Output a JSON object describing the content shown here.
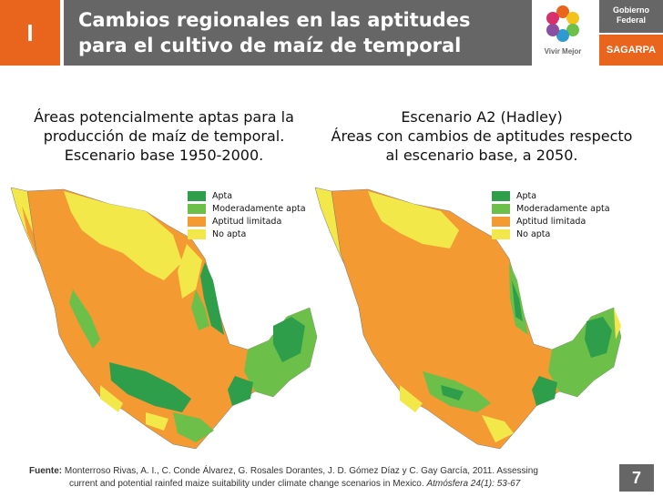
{
  "header": {
    "badge": "I",
    "title_line1": "Cambios regionales en las aptitudes",
    "title_line2": "para el cultivo de maíz de temporal",
    "logo_caption": "Vivir Mejor",
    "gov_line1": "Gobierno",
    "gov_line2": "Federal",
    "sagarpa": "SAGARPA"
  },
  "map_left": {
    "title_line1": "Áreas potencialmente aptas para la",
    "title_line2": "producción de maíz de temporal.",
    "title_line3": "Escenario base 1950-2000."
  },
  "map_right": {
    "title_line1": "Escenario A2 (Hadley)",
    "title_line2": "Áreas con cambios de aptitudes respecto",
    "title_line3": "al escenario base, a 2050."
  },
  "legend": [
    {
      "label": "Apta",
      "color": "#2e9e4a"
    },
    {
      "label": "Moderadamente apta",
      "color": "#6cc04a"
    },
    {
      "label": "Aptitud limitada",
      "color": "#f39a33"
    },
    {
      "label": "No apta",
      "color": "#f3e84a"
    }
  ],
  "source": {
    "label": "Fuente:",
    "text1": "Monterroso Rivas, A. I., C. Conde Álvarez, G. Rosales Dorantes, J. D. Gómez Díaz y C. Gay García, 2011. Assessing",
    "text2": "current and potential rainfed maize suitability under climate change scenarios in Mexico.",
    "journal": "Atmósfera 24(1): 53-67"
  },
  "page_number": "7"
}
